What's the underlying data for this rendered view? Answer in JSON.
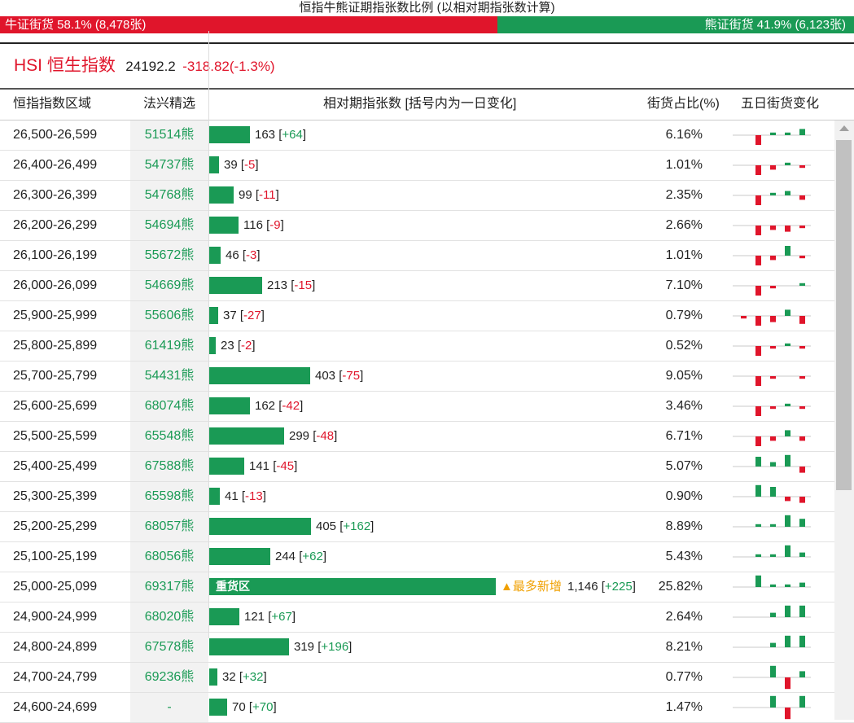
{
  "page_title": "恒指牛熊证期指张数比例 (以相对期指张数计算)",
  "ratio": {
    "bull_label": "牛证街货 58.1% (8,478张)",
    "bear_label": "熊证街货 41.9% (6,123张)",
    "bull_fraction": 0.581,
    "colors": {
      "bull": "#e0152b",
      "bear": "#1a9a55"
    }
  },
  "index": {
    "name": "HSI 恒生指数",
    "value": "24192.2",
    "change": "-318.82(-1.3%)"
  },
  "headers": {
    "range": "恒指指数区域",
    "pick": "法兴精选",
    "count": "相对期指张数 [括号内为一日变化]",
    "share": "街货占比(%)",
    "five_day": "五日街货变化"
  },
  "heavy_label": "重货区",
  "max_new_label": "▲最多新增",
  "rows": [
    {
      "range": "26,500-26,599",
      "code": "51514熊",
      "count": 163,
      "count_text": "163",
      "change": "+64",
      "share": "6.16%",
      "five": [
        0,
        -5,
        1,
        1,
        3
      ]
    },
    {
      "range": "26,400-26,499",
      "code": "54737熊",
      "count": 39,
      "count_text": "39",
      "change": "-5",
      "share": "1.01%",
      "five": [
        0,
        -5,
        -2,
        1,
        -1
      ]
    },
    {
      "range": "26,300-26,399",
      "code": "54768熊",
      "count": 99,
      "count_text": "99",
      "change": "-11",
      "share": "2.35%",
      "five": [
        0,
        -5,
        1,
        2,
        -2
      ]
    },
    {
      "range": "26,200-26,299",
      "code": "54694熊",
      "count": 116,
      "count_text": "116",
      "change": "-9",
      "share": "2.66%",
      "five": [
        0,
        -5,
        -2,
        -3,
        -1
      ]
    },
    {
      "range": "26,100-26,199",
      "code": "55672熊",
      "count": 46,
      "count_text": "46",
      "change": "-3",
      "share": "1.01%",
      "five": [
        0,
        -5,
        -2,
        5,
        -1
      ]
    },
    {
      "range": "26,000-26,099",
      "code": "54669熊",
      "count": 213,
      "count_text": "213",
      "change": "-15",
      "share": "7.10%",
      "five": [
        0,
        -5,
        -1,
        0,
        1
      ]
    },
    {
      "range": "25,900-25,999",
      "code": "55606熊",
      "count": 37,
      "count_text": "37",
      "change": "-27",
      "share": "0.79%",
      "five": [
        -1,
        -5,
        -3,
        3,
        -4
      ]
    },
    {
      "range": "25,800-25,899",
      "code": "61419熊",
      "count": 23,
      "count_text": "23",
      "change": "-2",
      "share": "0.52%",
      "five": [
        0,
        -5,
        -1,
        1,
        -1
      ]
    },
    {
      "range": "25,700-25,799",
      "code": "54431熊",
      "count": 403,
      "count_text": "403",
      "change": "-75",
      "share": "9.05%",
      "five": [
        0,
        -5,
        -1,
        0,
        -1
      ]
    },
    {
      "range": "25,600-25,699",
      "code": "68074熊",
      "count": 162,
      "count_text": "162",
      "change": "-42",
      "share": "3.46%",
      "five": [
        0,
        -5,
        -1,
        1,
        -1
      ]
    },
    {
      "range": "25,500-25,599",
      "code": "65548熊",
      "count": 299,
      "count_text": "299",
      "change": "-48",
      "share": "6.71%",
      "five": [
        0,
        -5,
        -2,
        3,
        -2
      ]
    },
    {
      "range": "25,400-25,499",
      "code": "67588熊",
      "count": 141,
      "count_text": "141",
      "change": "-45",
      "share": "5.07%",
      "five": [
        0,
        5,
        2,
        6,
        -3
      ]
    },
    {
      "range": "25,300-25,399",
      "code": "65598熊",
      "count": 41,
      "count_text": "41",
      "change": "-13",
      "share": "0.90%",
      "five": [
        0,
        6,
        5,
        -2,
        -3
      ]
    },
    {
      "range": "25,200-25,299",
      "code": "68057熊",
      "count": 405,
      "count_text": "405",
      "change": "+162",
      "share": "8.89%",
      "five": [
        0,
        1,
        1,
        6,
        4
      ]
    },
    {
      "range": "25,100-25,199",
      "code": "68056熊",
      "count": 244,
      "count_text": "244",
      "change": "+62",
      "share": "5.43%",
      "five": [
        0,
        1,
        1,
        6,
        2
      ]
    },
    {
      "range": "25,000-25,099",
      "code": "69317熊",
      "count": 1146,
      "count_text": "1,146",
      "change": "+225",
      "share": "25.82%",
      "heavy": true,
      "max_new": true,
      "five": [
        0,
        6,
        1,
        1,
        2
      ]
    },
    {
      "range": "24,900-24,999",
      "code": "68020熊",
      "count": 121,
      "count_text": "121",
      "change": "+67",
      "share": "2.64%",
      "five": [
        0,
        0,
        2,
        6,
        6
      ]
    },
    {
      "range": "24,800-24,899",
      "code": "67578熊",
      "count": 319,
      "count_text": "319",
      "change": "+196",
      "share": "8.21%",
      "five": [
        0,
        0,
        2,
        6,
        6
      ]
    },
    {
      "range": "24,700-24,799",
      "code": "69236熊",
      "count": 32,
      "count_text": "32",
      "change": "+32",
      "share": "0.77%",
      "five": [
        0,
        0,
        6,
        -6,
        3
      ]
    },
    {
      "range": "24,600-24,699",
      "code": "-",
      "count": 70,
      "count_text": "70",
      "change": "+70",
      "share": "1.47%",
      "five": [
        0,
        0,
        6,
        -6,
        6
      ]
    }
  ]
}
